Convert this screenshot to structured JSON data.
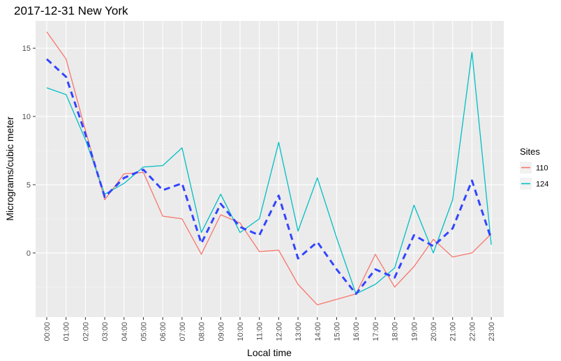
{
  "chart_data": {
    "type": "line",
    "title": "2017-12-31 New York",
    "xlabel": "Local time",
    "ylabel": "Micrograms/cubic meter",
    "categories": [
      "00:00",
      "01:00",
      "02:00",
      "03:00",
      "04:00",
      "05:00",
      "06:00",
      "07:00",
      "08:00",
      "09:00",
      "10:00",
      "11:00",
      "12:00",
      "13:00",
      "14:00",
      "15:00",
      "16:00",
      "17:00",
      "18:00",
      "19:00",
      "20:00",
      "21:00",
      "22:00",
      "23:00"
    ],
    "yticks": [
      0,
      5,
      10,
      15
    ],
    "ylim": [
      -4.7,
      17.0
    ],
    "grid": true,
    "legend": {
      "title": "Sites",
      "position": "right"
    },
    "series": [
      {
        "name": "110",
        "color": "#F8766D",
        "values": [
          16.2,
          14.2,
          9.0,
          3.9,
          5.8,
          5.9,
          2.7,
          2.5,
          -0.1,
          2.8,
          2.2,
          0.1,
          0.2,
          -2.3,
          -3.8,
          -3.4,
          -3.0,
          -0.1,
          -2.5,
          -1.0,
          1.0,
          -0.3,
          0.0,
          1.4
        ]
      },
      {
        "name": "124",
        "color": "#00BFC4",
        "values": [
          12.1,
          11.6,
          8.3,
          4.3,
          5.1,
          6.3,
          6.4,
          7.7,
          1.5,
          4.3,
          1.5,
          2.5,
          8.1,
          1.6,
          5.5,
          1.1,
          -3.0,
          -2.3,
          -1.1,
          3.5,
          0.0,
          3.9,
          14.7,
          0.6
        ]
      },
      {
        "color": "#3344FF",
        "dashed": true,
        "values": [
          14.2,
          12.9,
          8.7,
          4.1,
          5.5,
          6.1,
          4.6,
          5.1,
          0.7,
          3.6,
          1.9,
          1.3,
          4.2,
          -0.4,
          0.8,
          -1.2,
          -3.0,
          -1.2,
          -1.8,
          1.3,
          0.5,
          1.8,
          5.3,
          1.0
        ]
      }
    ]
  }
}
